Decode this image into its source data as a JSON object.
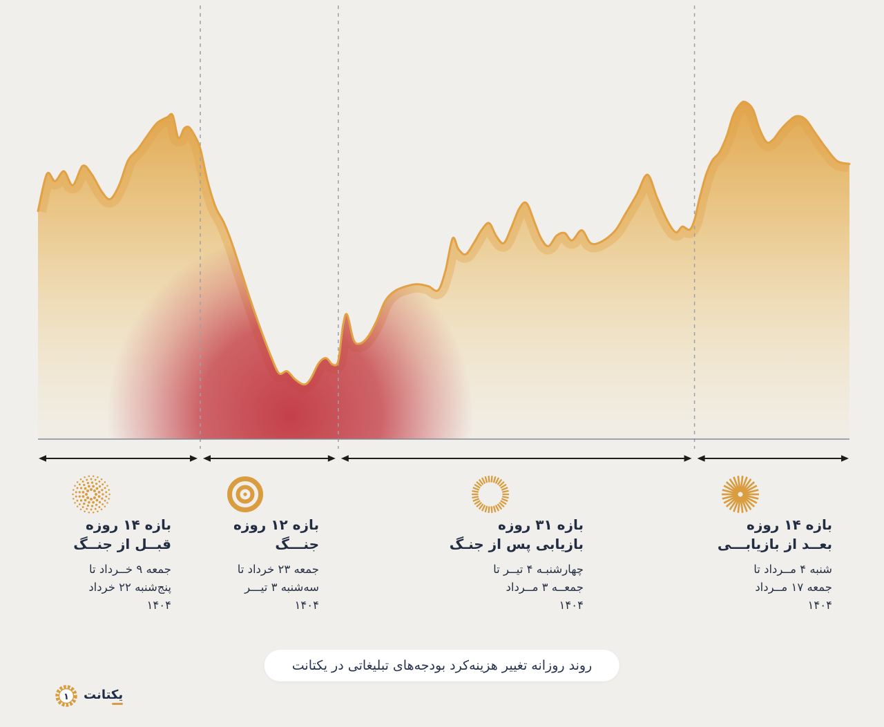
{
  "colors": {
    "background": "#F1EFEC",
    "amber_line": "#E1A144",
    "amber_dark": "#DFA245",
    "amber_mid": "#E9BC68",
    "amber_pale": "#F3DCA2",
    "red": "#C23742",
    "icon": "#D99C3E",
    "axis": "#848B93",
    "divider": "#9BA1A8",
    "arrow": "#1C1C1C",
    "text_dark": "#222D42"
  },
  "chart_data": {
    "type": "area",
    "title": "روند روزانه تغییر هزینه‌کرد بودجه‌های تبلیغاتی در یکتانت",
    "ylim": [
      0,
      100
    ],
    "grid": false,
    "legend": false,
    "section_boundaries_pct": [
      0,
      20,
      37,
      80.9,
      100
    ],
    "points": [
      [
        0,
        67.3
      ],
      [
        1.1,
        78.2
      ],
      [
        2.1,
        76.1
      ],
      [
        3.2,
        79
      ],
      [
        4.3,
        74.9
      ],
      [
        5.5,
        80.6
      ],
      [
        6.6,
        78.2
      ],
      [
        7.9,
        72.9
      ],
      [
        8.9,
        70.8
      ],
      [
        10,
        74.9
      ],
      [
        11.1,
        82.2
      ],
      [
        12.3,
        85.5
      ],
      [
        13.5,
        89.6
      ],
      [
        14.7,
        93.3
      ],
      [
        15.9,
        94.9
      ],
      [
        16.6,
        95.5
      ],
      [
        17.3,
        88.8
      ],
      [
        18,
        91.6
      ],
      [
        18.6,
        92
      ],
      [
        19.3,
        89.6
      ],
      [
        20,
        85.7
      ],
      [
        20.9,
        76.1
      ],
      [
        21.9,
        68.4
      ],
      [
        22.9,
        63.9
      ],
      [
        23.9,
        57.8
      ],
      [
        25.1,
        49
      ],
      [
        26.3,
        40.2
      ],
      [
        27.5,
        32
      ],
      [
        28.7,
        24.5
      ],
      [
        29.7,
        19.4
      ],
      [
        30.7,
        20
      ],
      [
        31.7,
        17.6
      ],
      [
        32.8,
        16.1
      ],
      [
        33.6,
        17.8
      ],
      [
        34.6,
        22.4
      ],
      [
        35.5,
        23.9
      ],
      [
        36.3,
        22
      ],
      [
        37,
        23.1
      ],
      [
        37.6,
        33.7
      ],
      [
        38.1,
        36.7
      ],
      [
        38.9,
        29.2
      ],
      [
        39.7,
        28.2
      ],
      [
        40.6,
        30
      ],
      [
        41.7,
        34.7
      ],
      [
        42.8,
        40.8
      ],
      [
        44,
        43.7
      ],
      [
        45.4,
        45.1
      ],
      [
        46.7,
        45.7
      ],
      [
        48.1,
        45.1
      ],
      [
        49.3,
        43.9
      ],
      [
        50.2,
        49.6
      ],
      [
        51.1,
        59.2
      ],
      [
        51.8,
        56.1
      ],
      [
        52.7,
        54.5
      ],
      [
        53.7,
        57.8
      ],
      [
        54.7,
        61.8
      ],
      [
        55.6,
        63.7
      ],
      [
        56.5,
        59.8
      ],
      [
        57.4,
        57.8
      ],
      [
        58.3,
        62.2
      ],
      [
        59.3,
        68
      ],
      [
        60.2,
        69.6
      ],
      [
        61.2,
        63.9
      ],
      [
        62,
        59.2
      ],
      [
        62.9,
        56.9
      ],
      [
        63.9,
        60
      ],
      [
        64.9,
        60.8
      ],
      [
        65.8,
        58.6
      ],
      [
        67,
        61.6
      ],
      [
        68.1,
        57.8
      ],
      [
        69.4,
        58.2
      ],
      [
        71.1,
        61.4
      ],
      [
        72.4,
        66.5
      ],
      [
        73.8,
        72.2
      ],
      [
        75.1,
        78
      ],
      [
        76.3,
        71.2
      ],
      [
        77.5,
        64.7
      ],
      [
        78.6,
        61
      ],
      [
        79.4,
        62.7
      ],
      [
        80.3,
        61.8
      ],
      [
        80.9,
        64.7
      ],
      [
        81.5,
        70.8
      ],
      [
        82.3,
        77.8
      ],
      [
        83.1,
        82.2
      ],
      [
        84,
        84.7
      ],
      [
        84.9,
        89.6
      ],
      [
        85.7,
        95.7
      ],
      [
        86.6,
        99
      ],
      [
        87.2,
        99.4
      ],
      [
        88.1,
        97.3
      ],
      [
        88.9,
        91.6
      ],
      [
        89.8,
        87.6
      ],
      [
        90.6,
        88.4
      ],
      [
        91.5,
        91.2
      ],
      [
        92.5,
        93.7
      ],
      [
        93.5,
        95.3
      ],
      [
        94.6,
        94.3
      ],
      [
        95.7,
        90.6
      ],
      [
        97.1,
        85.9
      ],
      [
        98.5,
        82
      ],
      [
        100,
        81.2
      ]
    ]
  },
  "sections": [
    {
      "icon": "dotted-burst-icon",
      "title_line1": "بازه ۱۴ روزه",
      "title_line2": "قبــل از جنــگ",
      "date_line1": "جمعه ۹ خــرداد تا",
      "date_line2": "پنج‌شنبه ۲۲ خرداد",
      "year": "۱۴۰۴"
    },
    {
      "icon": "target-circles-icon",
      "title_line1": "بازه ۱۲ روزه",
      "title_line2": "جنـــگ",
      "date_line1": "جمعه ۲۳ خرداد تا",
      "date_line2": "سه‌شنبه ۳ تیـــر",
      "year": "۱۴۰۴"
    },
    {
      "icon": "dashed-ring-icon",
      "title_line1": "بازه ۳۱ روزه",
      "title_line2": "بازیابی پس از جنـگ",
      "date_line1": "چهارشنبـه ۴ تیــر تا",
      "date_line2": "جمعــه ۳ مــرداد",
      "year": "۱۴۰۴"
    },
    {
      "icon": "ray-burst-icon",
      "title_line1": "بازه ۱۴ روزه",
      "title_line2": "بعــد از بازیابـــی",
      "date_line1": "شنبه ۴ مــرداد تا",
      "date_line2": "جمعه ۱۷ مــرداد",
      "year": "۱۴۰۴"
    }
  ],
  "caption": {
    "text": "روند روزانه تغییر هزینه‌کرد بودجه‌های تبلیغاتی در یکتانت"
  },
  "logo": {
    "wordmark": "یکتانت",
    "badge_digit": "۱"
  }
}
